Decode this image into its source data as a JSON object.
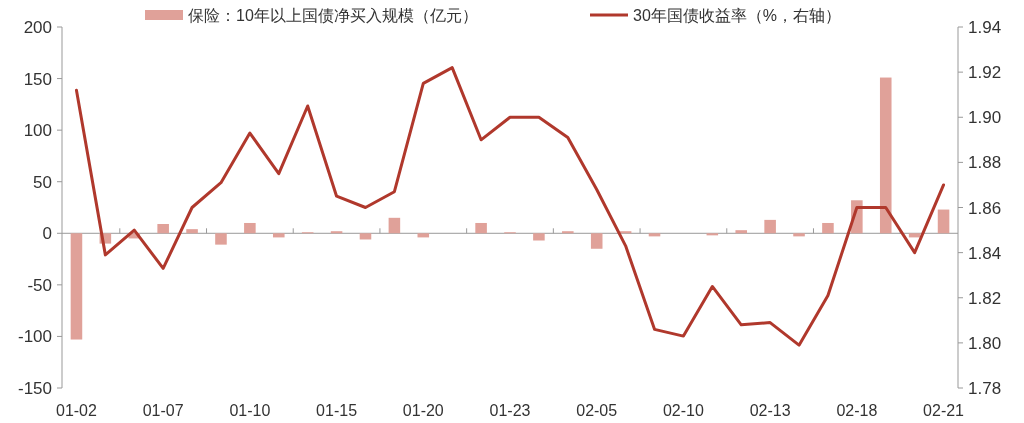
{
  "chart_data": {
    "type": "bar",
    "categories": [
      "01-02",
      null,
      null,
      "01-07",
      null,
      null,
      "01-10",
      null,
      null,
      "01-15",
      null,
      null,
      "01-20",
      null,
      null,
      "01-23",
      null,
      null,
      "02-05",
      null,
      null,
      "02-10",
      null,
      null,
      "02-13",
      null,
      null,
      "02-18",
      null,
      null,
      "02-21"
    ],
    "series": [
      {
        "name": "保险：10年以上国债净买入规模（亿元）",
        "color": "#e0a199",
        "values": [
          -103,
          -10,
          -5,
          9,
          4,
          -11,
          10,
          -4,
          1,
          2,
          -6,
          15,
          -4,
          0,
          10,
          1,
          -7,
          2,
          -15,
          2,
          -3,
          0,
          -2,
          3,
          13,
          -3,
          10,
          32,
          151,
          -4,
          23
        ]
      },
      {
        "name": "30年国债收益率（%，右轴）",
        "type": "line",
        "axis": "y2",
        "color": "#b0382c",
        "values": [
          1.912,
          1.839,
          1.85,
          1.833,
          1.86,
          1.871,
          1.893,
          1.875,
          1.905,
          1.865,
          1.86,
          1.867,
          1.915,
          1.922,
          1.89,
          1.9,
          1.9,
          1.891,
          1.868,
          1.843,
          1.806,
          1.803,
          1.825,
          1.808,
          1.809,
          1.799,
          1.821,
          1.86,
          1.86,
          1.84,
          1.87
        ]
      }
    ],
    "ylim": [
      -150,
      200
    ],
    "yticks": [
      -150,
      -100,
      -50,
      0,
      50,
      100,
      150,
      200
    ],
    "y2lim": [
      1.78,
      1.94
    ],
    "y2ticks": [
      1.78,
      {
        "value": 1.8,
        "label": "1.80"
      },
      1.82,
      1.84,
      1.86,
      1.88,
      {
        "value": 1.9,
        "label": "1.90"
      },
      1.92,
      1.94
    ],
    "legend": "top"
  }
}
